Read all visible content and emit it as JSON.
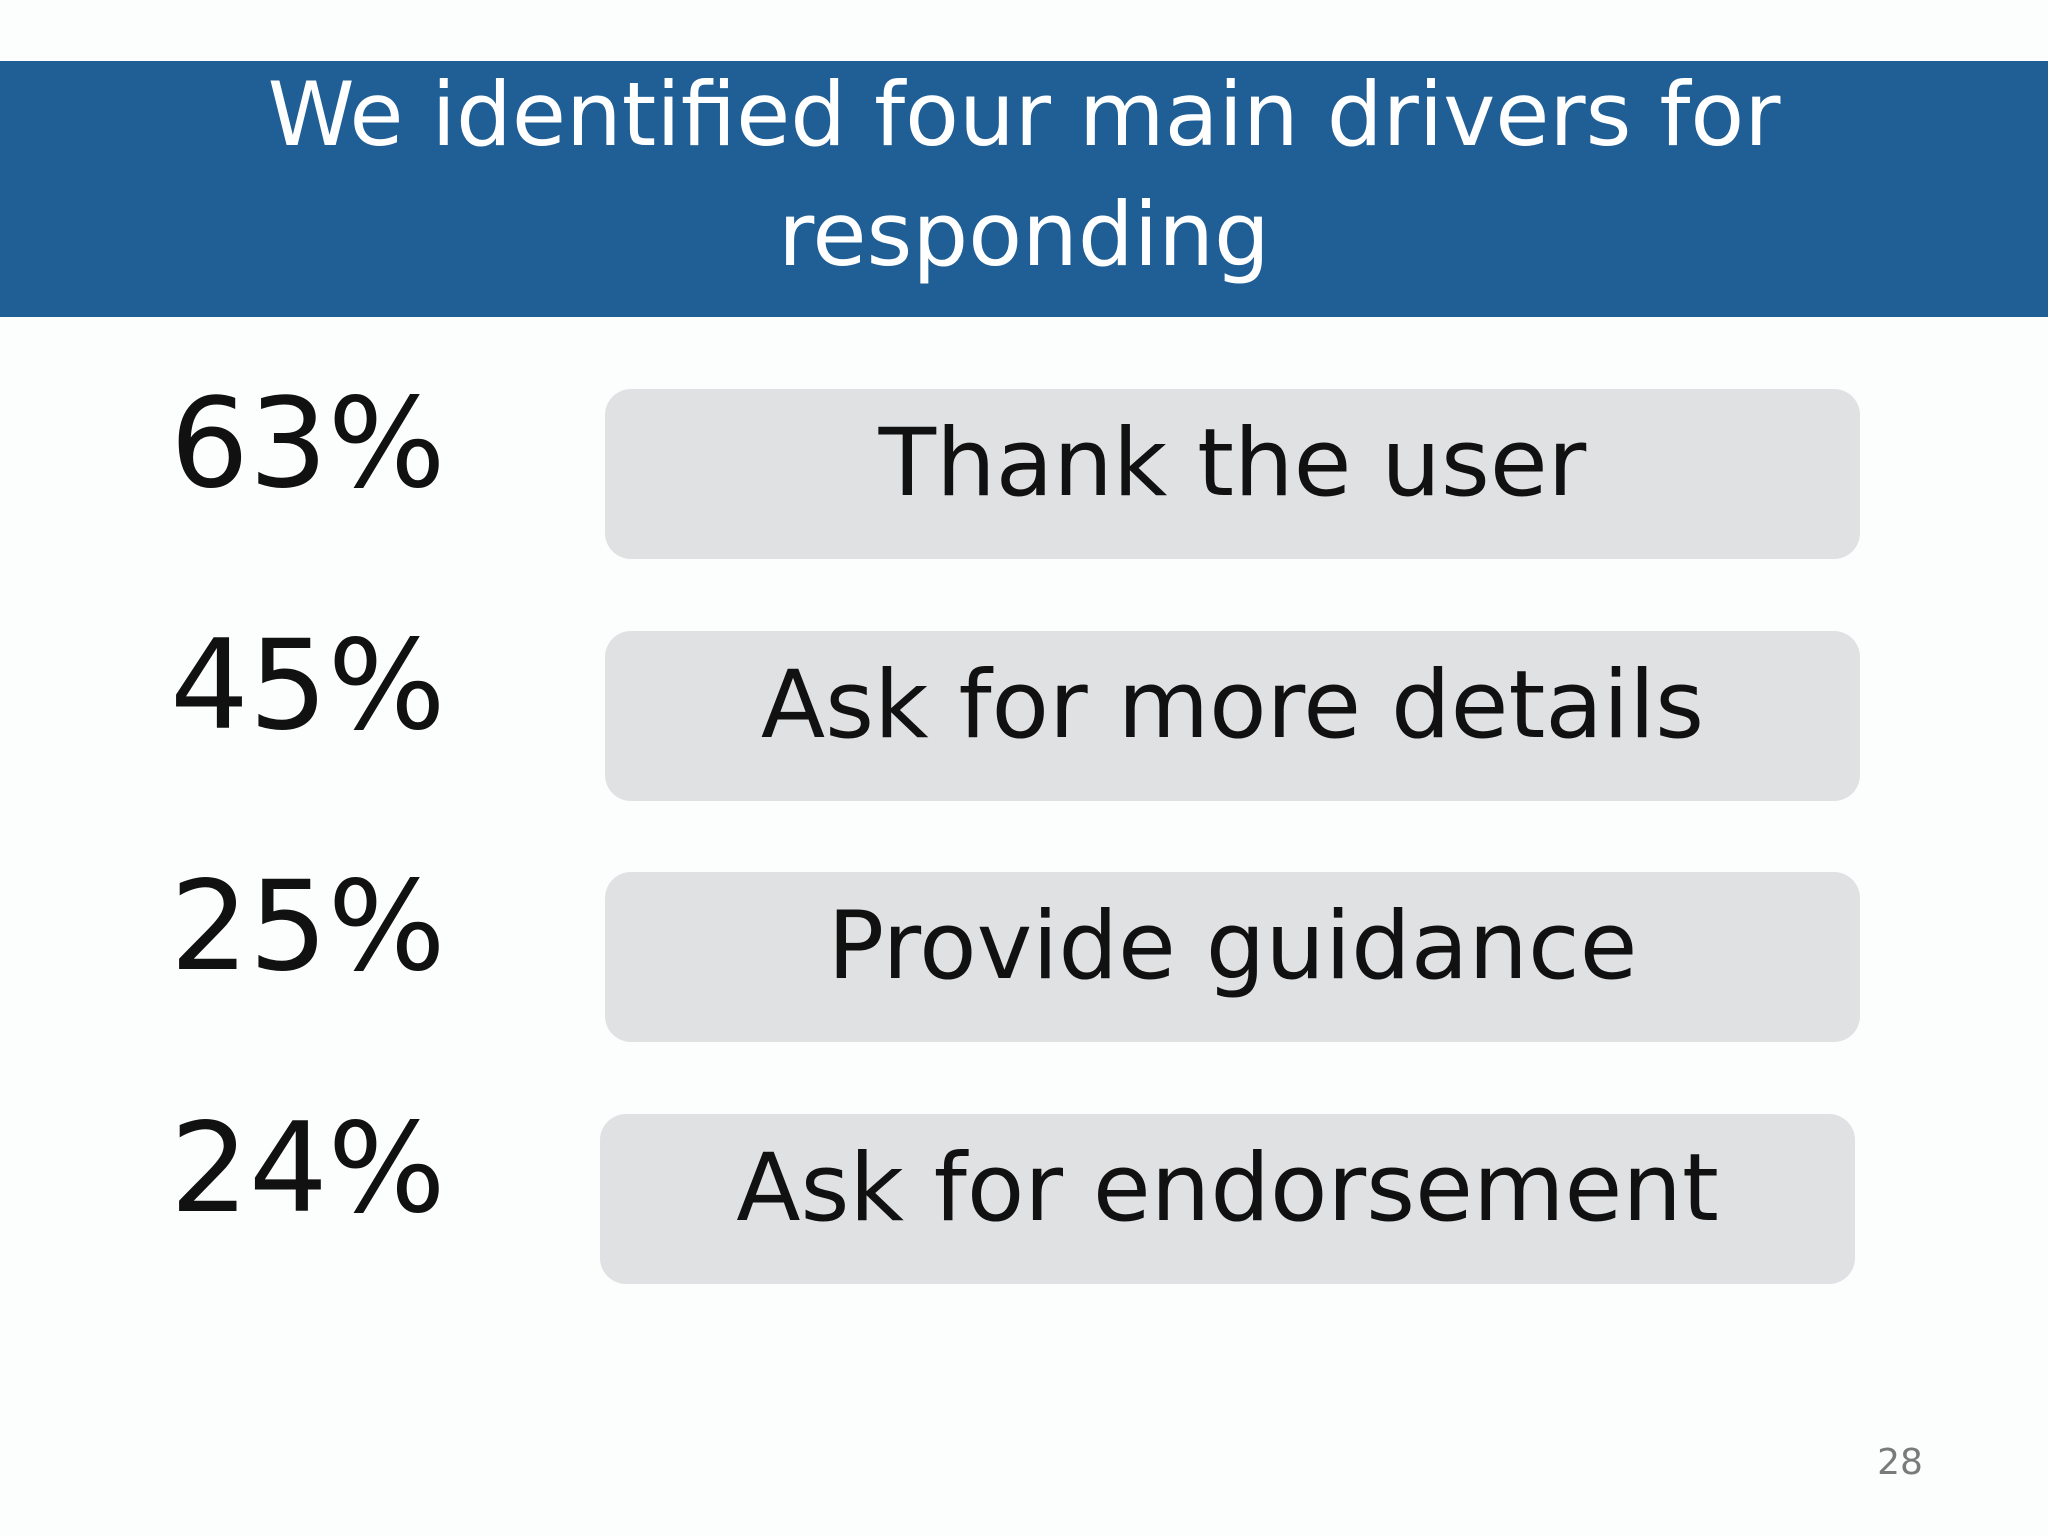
{
  "header": {
    "title": "We identified four main drivers for responding"
  },
  "items": [
    {
      "percent": "63%",
      "label": "Thank the user"
    },
    {
      "percent": "45%",
      "label": "Ask for more details"
    },
    {
      "percent": "25%",
      "label": "Provide guidance"
    },
    {
      "percent": "24%",
      "label": "Ask for endorsement"
    }
  ],
  "page_number": "28"
}
